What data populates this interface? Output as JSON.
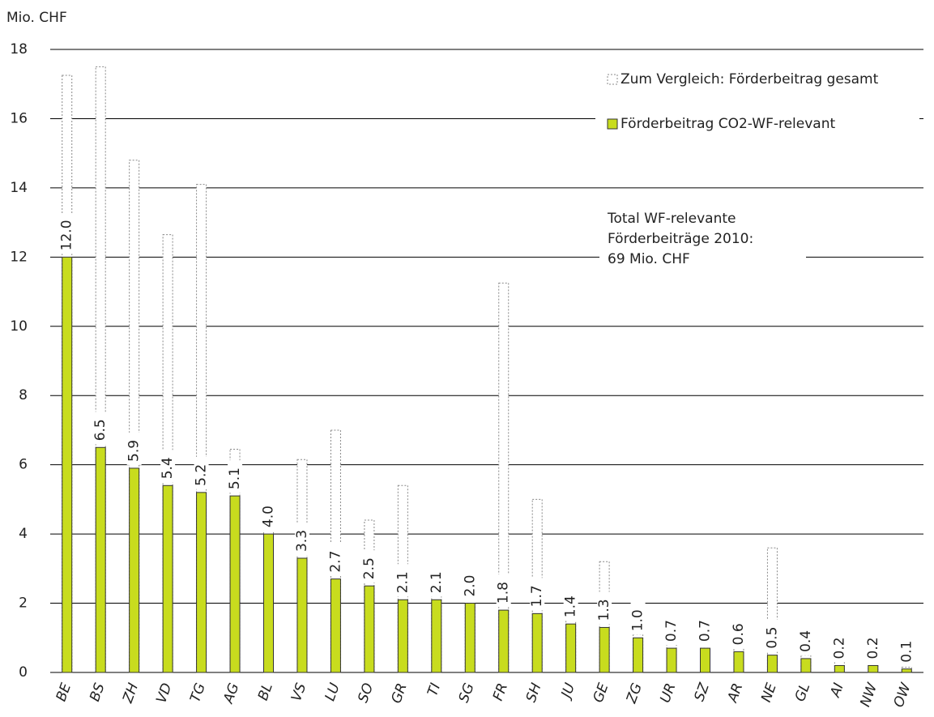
{
  "chart_data": {
    "type": "bar",
    "y_axis_label": "Mio. CHF",
    "categories": [
      "BE",
      "BS",
      "ZH",
      "VD",
      "TG",
      "AG",
      "BL",
      "VS",
      "LU",
      "SO",
      "GR",
      "TI",
      "SG",
      "FR",
      "SH",
      "JU",
      "GE",
      "ZG",
      "UR",
      "SZ",
      "AR",
      "NE",
      "GL",
      "AI",
      "NW",
      "OW"
    ],
    "series": [
      {
        "name": "Zum Vergleich: Förderbeitrag gesamt",
        "color": "#888888",
        "style": "dotted",
        "values": [
          17.25,
          17.5,
          14.8,
          12.65,
          14.1,
          6.45,
          4.8,
          6.15,
          7.0,
          4.4,
          5.4,
          2.4,
          2.0,
          11.25,
          5.0,
          1.55,
          3.2,
          1.1,
          1.0,
          0.7,
          1.15,
          3.6,
          0.5,
          0.4,
          0.2,
          0.15
        ]
      },
      {
        "name": "Förderbeitrag CO2-WF-relevant",
        "color": "#c8dc1e",
        "style": "solid",
        "values": [
          12.0,
          6.5,
          5.9,
          5.4,
          5.2,
          5.1,
          4.0,
          3.3,
          2.7,
          2.5,
          2.1,
          2.1,
          2.0,
          1.8,
          1.7,
          1.4,
          1.3,
          1.0,
          0.7,
          0.7,
          0.6,
          0.5,
          0.4,
          0.2,
          0.2,
          0.1
        ],
        "value_labels": [
          "12.0",
          "6.5",
          "5.9",
          "5.4",
          "5.2",
          "5.1",
          "4.0",
          "3.3",
          "2.7",
          "2.5",
          "2.1",
          "2.1",
          "2.0",
          "1.8",
          "1.7",
          "1.4",
          "1.3",
          "1.0",
          "0.7",
          "0.7",
          "0.6",
          "0.5",
          "0.4",
          "0.2",
          "0.2",
          "0.1"
        ]
      }
    ],
    "annotation": [
      "Total WF-relevante",
      "Förderbeiträge 2010:",
      "69 Mio. CHF"
    ],
    "ylim": [
      0,
      18
    ],
    "yticks": [
      0,
      2,
      4,
      6,
      8,
      10,
      12,
      14,
      16,
      18
    ],
    "grid": true,
    "legend": "top-right"
  }
}
